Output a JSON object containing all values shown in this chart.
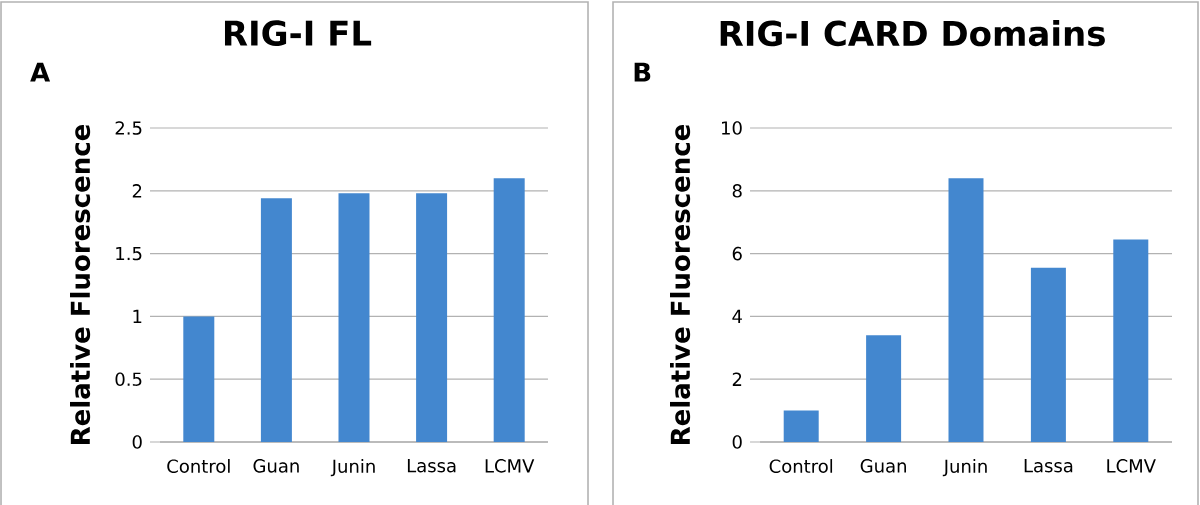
{
  "chart_data": [
    {
      "type": "bar",
      "title": "RIG-I FL",
      "ylabel": "Relative Fluorescence",
      "categories": [
        "Control",
        "Guan",
        "Junin",
        "Lassa",
        "LCMV"
      ],
      "values": [
        1.0,
        1.94,
        1.98,
        1.98,
        2.1
      ],
      "color": "#4387cf",
      "ylim": [
        0,
        2.5
      ],
      "yticks": [
        0,
        0.5,
        1,
        1.5,
        2,
        2.5
      ],
      "grid": "y",
      "annotations": [
        "A"
      ]
    },
    {
      "type": "bar",
      "title": "RIG-I CARD Domains",
      "ylabel": "Relative Fluorescence",
      "categories": [
        "Control",
        "Guan",
        "Junin",
        "Lassa",
        "LCMV"
      ],
      "values": [
        1.0,
        3.4,
        8.4,
        5.55,
        6.45
      ],
      "color": "#4387cf",
      "ylim": [
        0,
        10
      ],
      "yticks": [
        0,
        2,
        4,
        6,
        8,
        10
      ],
      "grid": "y",
      "annotations": [
        "B"
      ]
    }
  ]
}
